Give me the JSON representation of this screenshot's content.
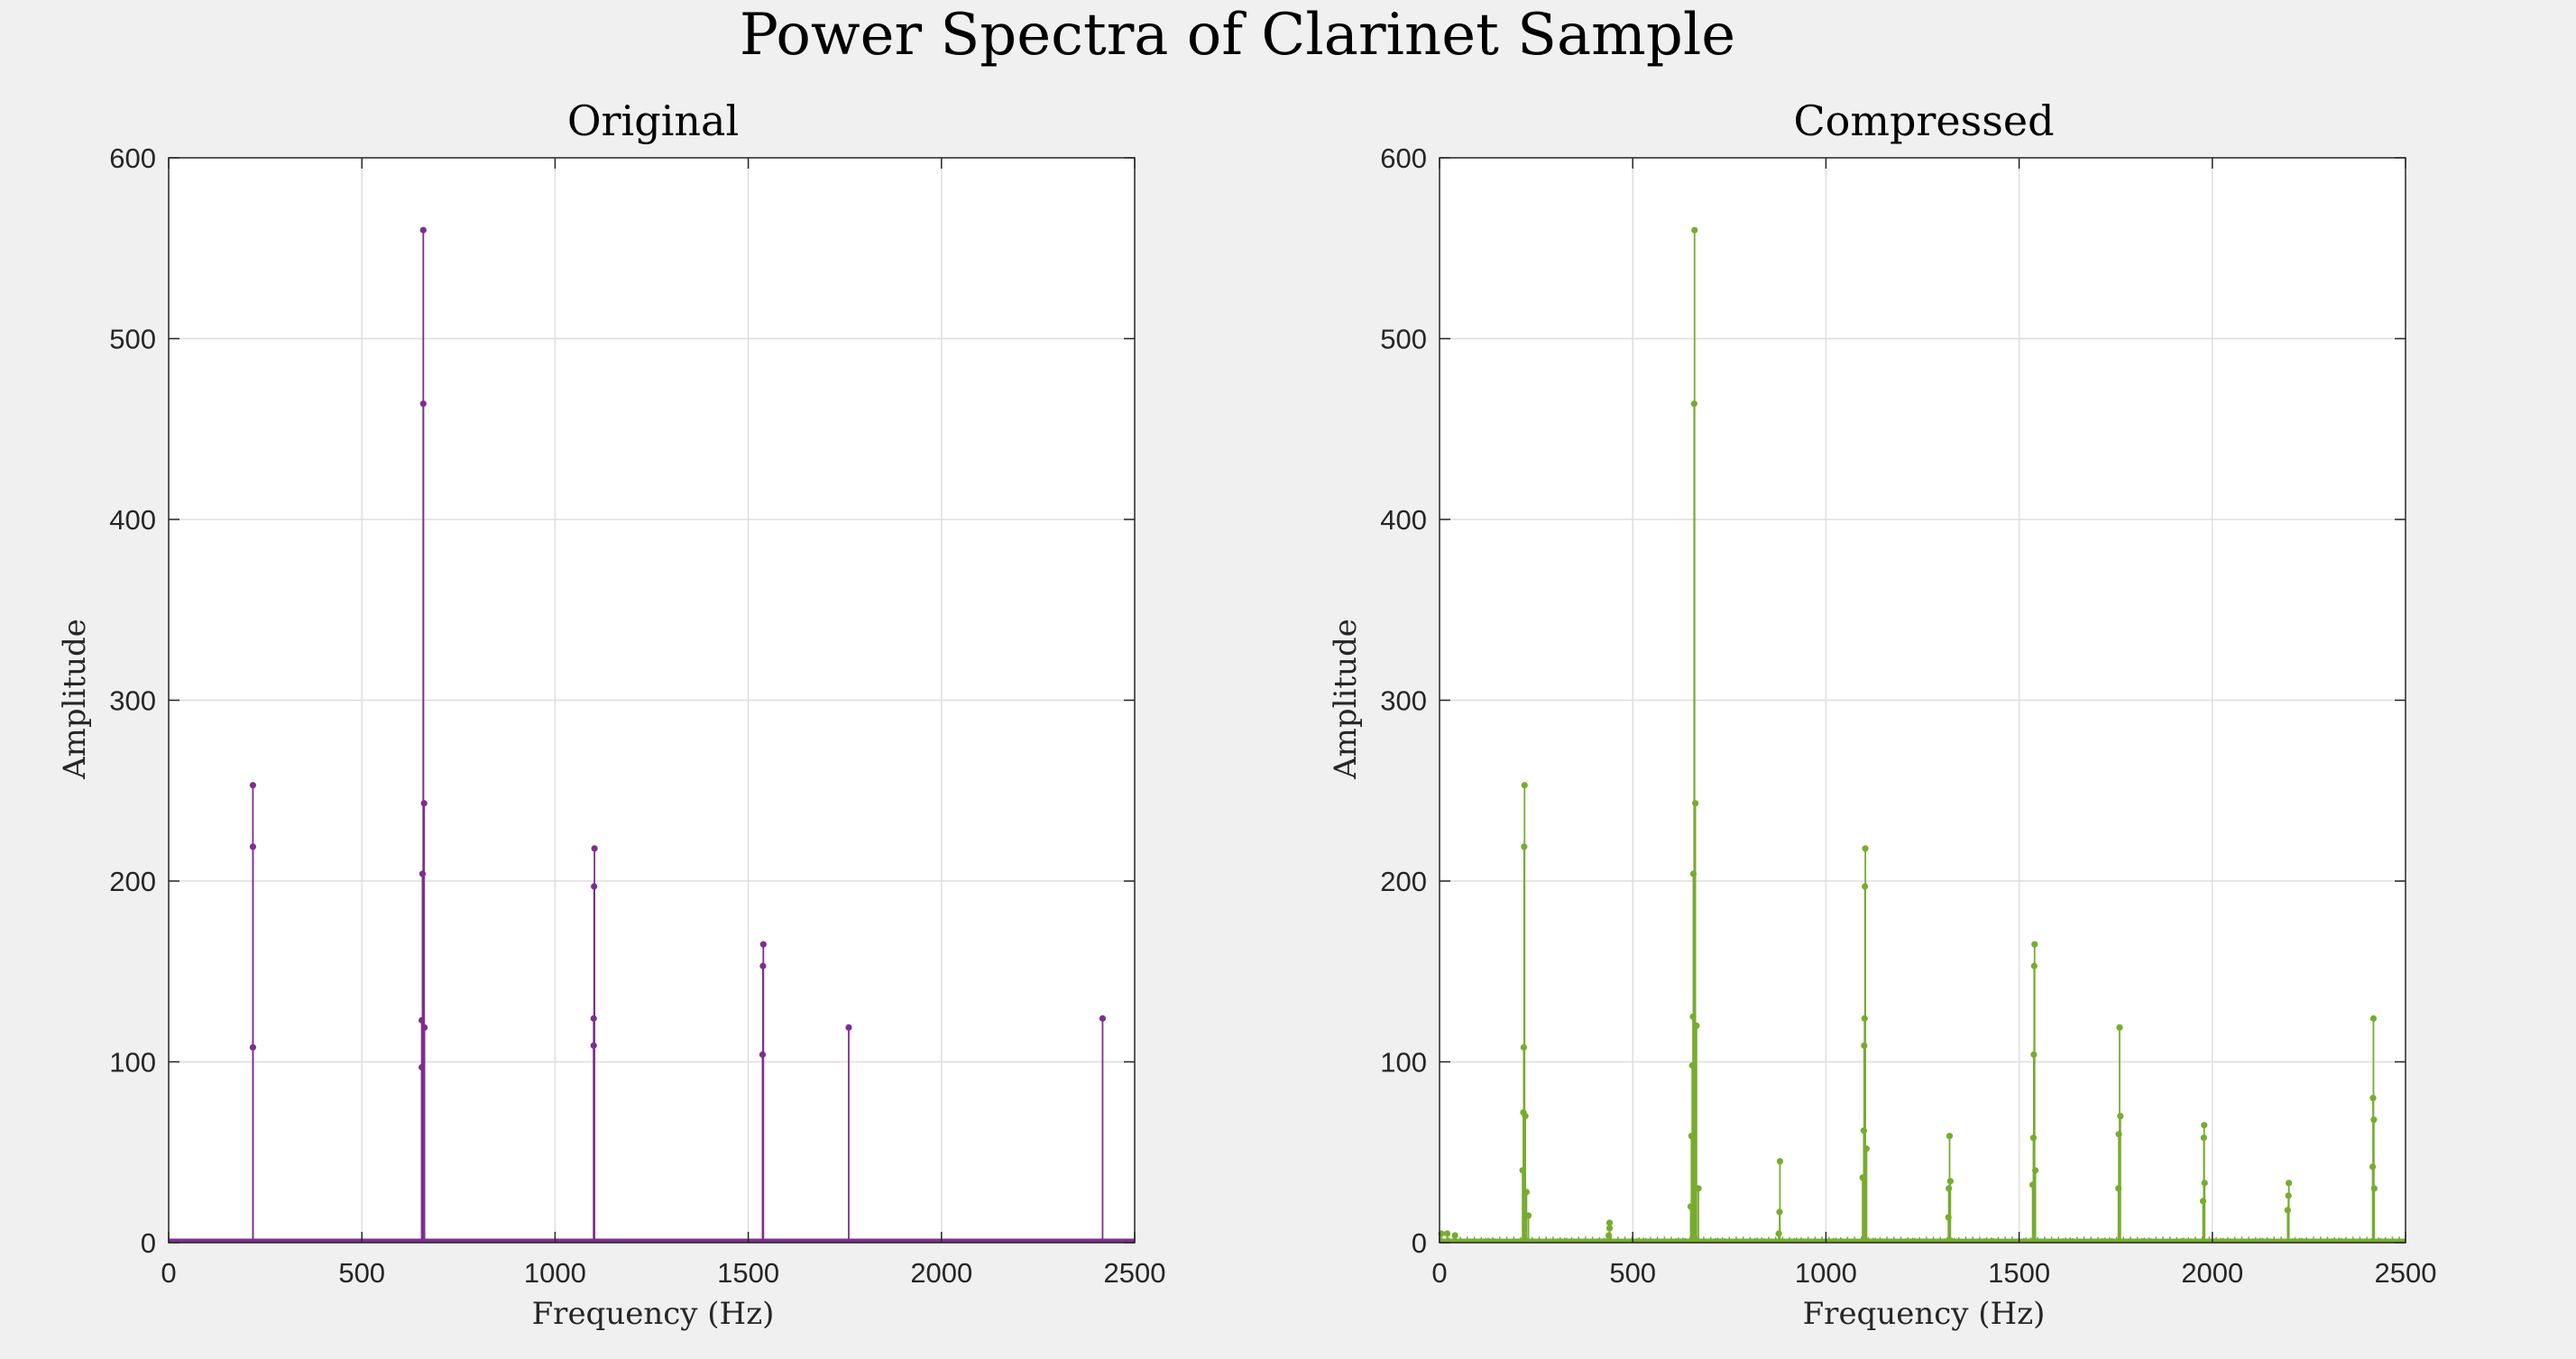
{
  "figure": {
    "title": "Power Spectra of Clarinet Sample",
    "background": "#f0f0f0",
    "axes_background": "#ffffff",
    "grid_color": "#dedede",
    "axis_color": "#262626"
  },
  "chart_data": [
    {
      "type": "stem",
      "title": "Original",
      "xlabel": "Frequency (Hz)",
      "ylabel": "Amplitude",
      "xlim": [
        0,
        2500
      ],
      "ylim": [
        0,
        600
      ],
      "xticks": [
        0,
        500,
        1000,
        1500,
        2000,
        2500
      ],
      "yticks": [
        0,
        100,
        200,
        300,
        400,
        500,
        600
      ],
      "grid": true,
      "color": "#7e2f8e",
      "x": [
        218,
        218,
        218,
        655,
        655,
        657,
        659,
        659,
        661,
        662,
        1100,
        1100,
        1101,
        1102,
        1537,
        1538,
        1539,
        1760,
        2417
      ],
      "y": [
        108,
        219,
        253,
        97,
        123,
        204,
        464,
        560,
        243,
        119,
        109,
        124,
        197,
        218,
        104,
        153,
        165,
        119,
        124
      ]
    },
    {
      "type": "stem",
      "title": "Compressed",
      "xlabel": "Frequency (Hz)",
      "ylabel": "Amplitude",
      "xlim": [
        0,
        2500
      ],
      "ylim": [
        0,
        600
      ],
      "xticks": [
        0,
        500,
        1000,
        1500,
        2000,
        2500
      ],
      "yticks": [
        0,
        100,
        200,
        300,
        400,
        500,
        600
      ],
      "grid": true,
      "color": "#77ac30",
      "x": [
        5,
        20,
        40,
        215,
        217,
        218,
        219,
        220,
        222,
        225,
        230,
        438,
        440,
        440,
        650,
        652,
        654,
        656,
        657,
        659,
        660,
        662,
        665,
        670,
        878,
        880,
        881,
        1095,
        1098,
        1099,
        1100,
        1101,
        1102,
        1105,
        1317,
        1318,
        1320,
        1322,
        1535,
        1537,
        1538,
        1539,
        1540,
        1542,
        1757,
        1758,
        1760,
        1762,
        1976,
        1978,
        1979,
        1980,
        2195,
        2197,
        2198,
        2415,
        2416,
        2417,
        2418,
        2419
      ],
      "y": [
        5,
        5,
        4,
        40,
        72,
        108,
        219,
        253,
        70,
        28,
        15,
        4,
        8,
        11,
        20,
        59,
        98,
        125,
        204,
        464,
        560,
        243,
        120,
        30,
        5,
        17,
        45,
        36,
        62,
        109,
        124,
        197,
        218,
        52,
        14,
        30,
        59,
        34,
        32,
        58,
        104,
        153,
        165,
        40,
        30,
        60,
        119,
        70,
        23,
        58,
        65,
        33,
        18,
        26,
        33,
        42,
        80,
        124,
        68,
        30
      ]
    }
  ]
}
